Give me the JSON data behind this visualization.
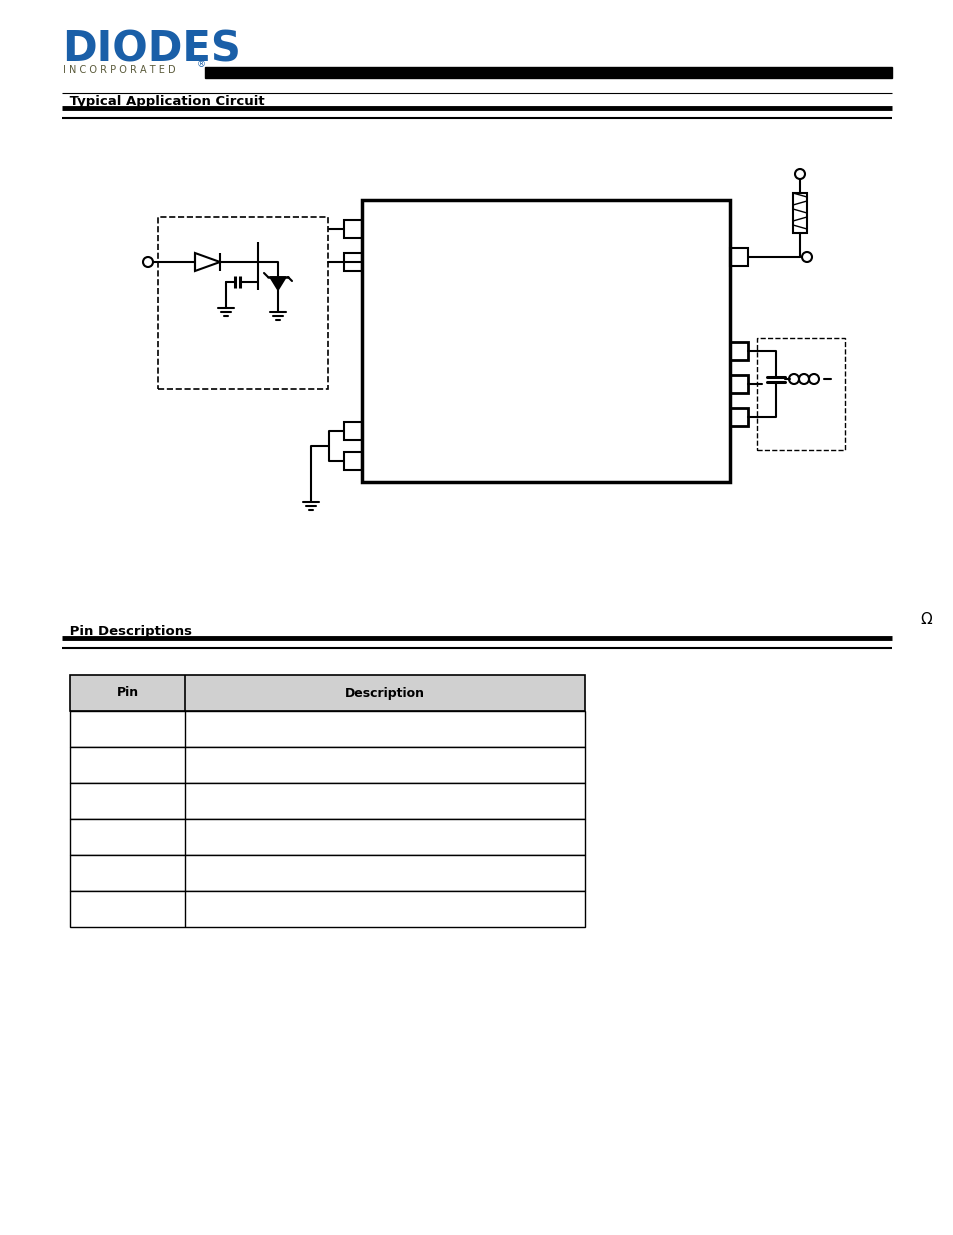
{
  "bg_color": "#ffffff",
  "diodes_color": "#1a5fa8",
  "incorporated_color": "#5a5a3a",
  "black": "#000000",
  "section1_label": "Typical Application Circuit",
  "section2_label": "Pin Descriptions",
  "table_header_bg": "#d0d0d0",
  "table_col1_label": "Pin",
  "table_col2_label": "Description",
  "omega": "Ω",
  "n_data_rows": 6
}
